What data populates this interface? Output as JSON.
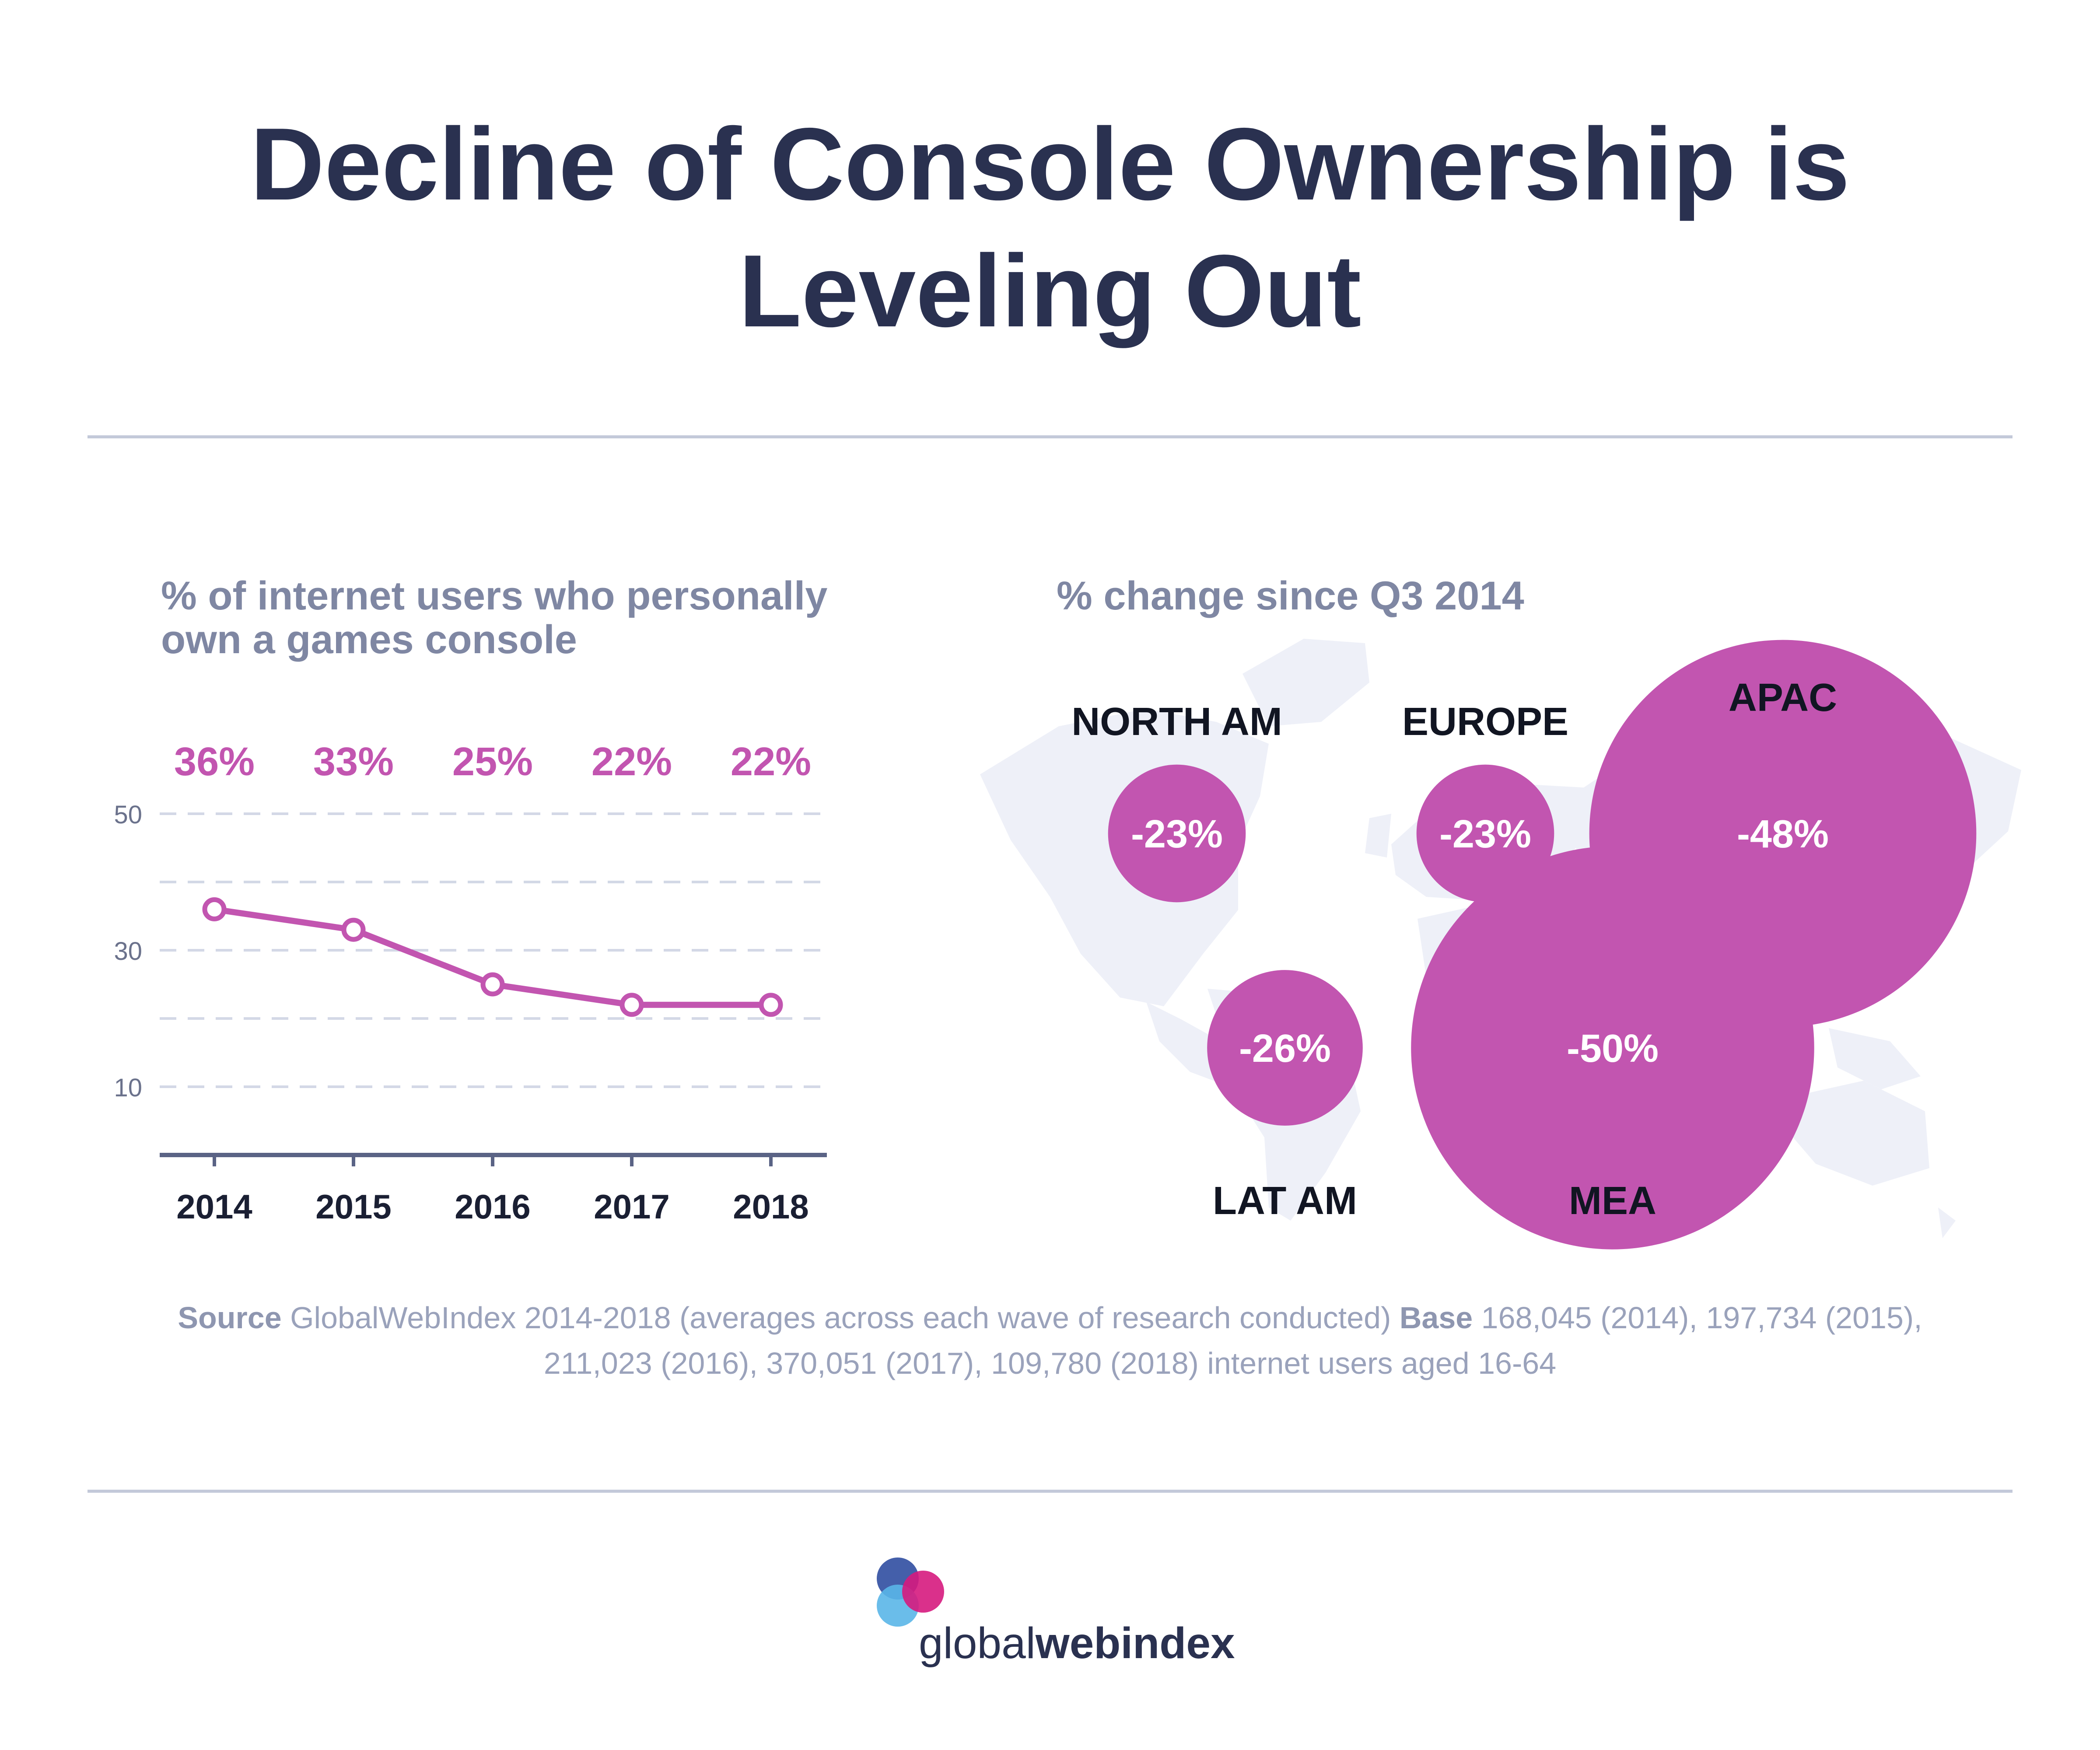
{
  "title_line1": "Decline of Console Ownership is",
  "title_line2": "Leveling Out",
  "left_panel": {
    "subtitle_line1": "% of internet users who personally",
    "subtitle_line2": "own a games console"
  },
  "right_panel": {
    "subtitle": "% change since Q3 2014"
  },
  "footer": {
    "source_label": "Source",
    "source_text": "GlobalWebIndex 2014-2018 (averages across each wave of research conducted)",
    "base_label": "Base",
    "base_text_line1": "168,045 (2014), 197,734 (2015),",
    "base_text_line2": "211,023 (2016), 370,051 (2017), 109,780 (2018) internet users aged 16-64"
  },
  "logo": {
    "text_light": "global",
    "text_bold": "webindex"
  },
  "colors": {
    "accent": "#c255b0",
    "title": "#2a3150",
    "muted": "#7f87a3",
    "grid": "#d3d8e6",
    "map": "#eef0f8"
  },
  "chart_data": [
    {
      "type": "line",
      "title": "% of internet users who personally own a games console",
      "categories": [
        "2014",
        "2015",
        "2016",
        "2017",
        "2018"
      ],
      "values": [
        36,
        33,
        25,
        22,
        22
      ],
      "value_labels": [
        "36%",
        "33%",
        "25%",
        "22%",
        "22%"
      ],
      "ylim": [
        0,
        50
      ],
      "yticks": [
        10,
        30,
        50
      ],
      "gridlines": [
        10,
        20,
        30,
        40,
        50
      ],
      "xlabel": "",
      "ylabel": ""
    },
    {
      "type": "bubble-map",
      "title": "% change since Q3 2014",
      "regions": [
        {
          "name": "NORTH AM",
          "change": -23,
          "label": "-23%"
        },
        {
          "name": "EUROPE",
          "change": -23,
          "label": "-23%"
        },
        {
          "name": "APAC",
          "change": -48,
          "label": "-48%"
        },
        {
          "name": "LAT AM",
          "change": -26,
          "label": "-26%"
        },
        {
          "name": "MEA",
          "change": -50,
          "label": "-50%"
        }
      ]
    }
  ]
}
